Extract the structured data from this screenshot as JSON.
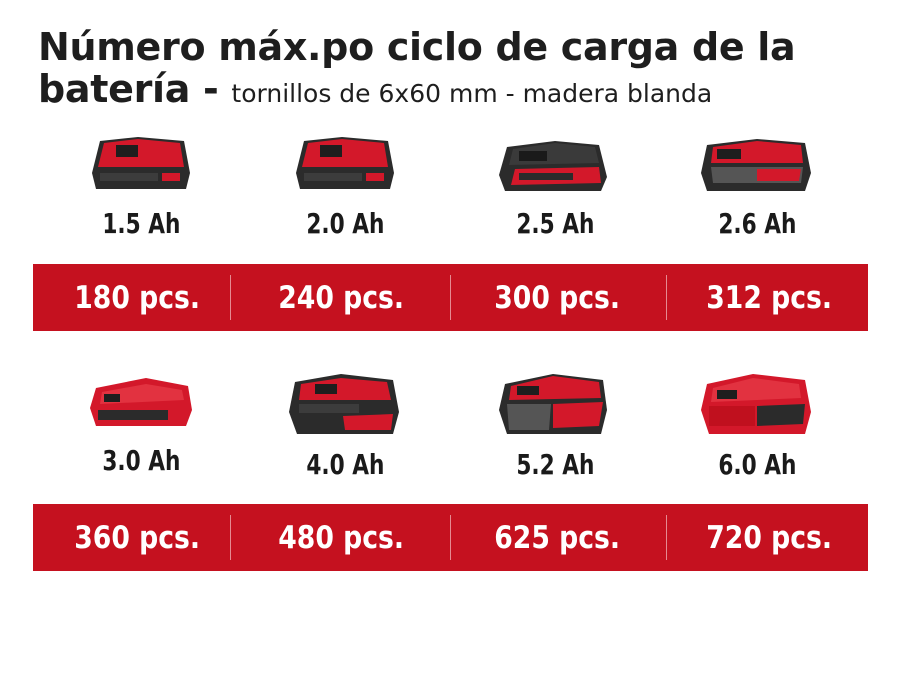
{
  "title": {
    "main": "Número máx.po ciclo de carga de la batería - ",
    "sub": "tornillos de 6x60 mm - madera blanda"
  },
  "rows": [
    {
      "batteries": [
        {
          "capacity": "1.5 Ah",
          "count": "180 pcs.",
          "icon": "battery-pack-compact-icon"
        },
        {
          "capacity": "2.0 Ah",
          "count": "240 pcs.",
          "icon": "battery-pack-compact-icon"
        },
        {
          "capacity": "2.5 Ah",
          "count": "300 pcs.",
          "icon": "battery-pack-compact-icon"
        },
        {
          "capacity": "2.6 Ah",
          "count": "312 pcs.",
          "icon": "battery-pack-compact-icon"
        }
      ]
    },
    {
      "batteries": [
        {
          "capacity": "3.0 Ah",
          "count": "360 pcs.",
          "icon": "battery-pack-compact-icon"
        },
        {
          "capacity": "4.0 Ah",
          "count": "480 pcs.",
          "icon": "battery-pack-large-icon"
        },
        {
          "capacity": "5.2 Ah",
          "count": "625 pcs.",
          "icon": "battery-pack-large-icon"
        },
        {
          "capacity": "6.0 Ah",
          "count": "720 pcs.",
          "icon": "battery-pack-large-icon"
        }
      ]
    }
  ],
  "colors": {
    "accent": "#c5111f",
    "battery_red": "#d3182a",
    "battery_dark": "#2b2b2b",
    "text": "#1a1a1a"
  }
}
